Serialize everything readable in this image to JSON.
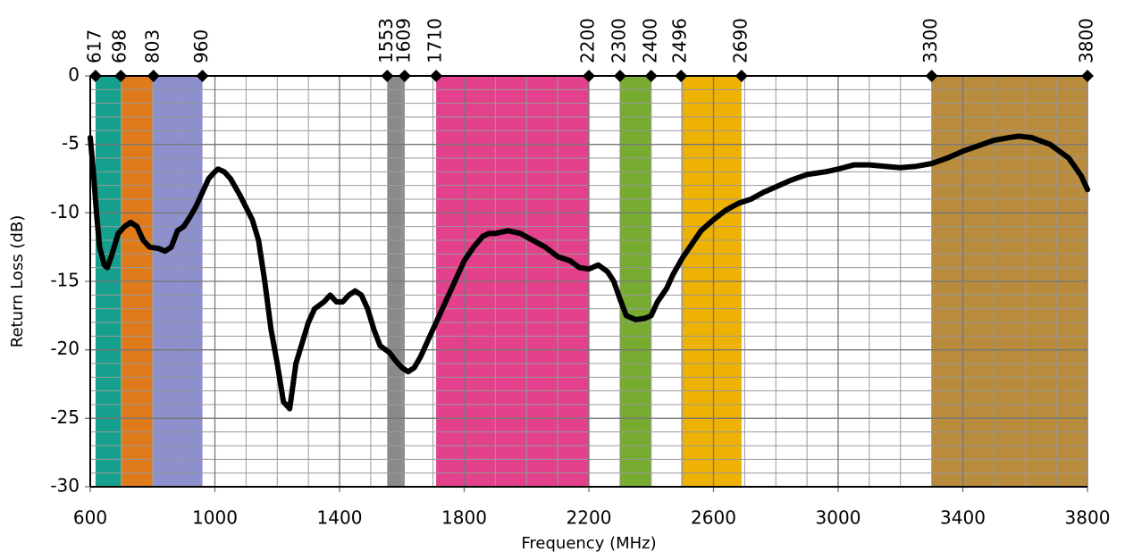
{
  "chart_data": {
    "type": "line",
    "xlabel": "Frequency (MHz)",
    "ylabel": "Return Loss (dB)",
    "xlim": [
      600,
      3800
    ],
    "xticks": [
      600,
      1000,
      1400,
      1800,
      2200,
      2600,
      3000,
      3400,
      3800
    ],
    "ylim": [
      -30,
      0
    ],
    "yticks": [
      0,
      -5,
      -10,
      -15,
      -20,
      -25,
      -30
    ],
    "grid": true,
    "xgrid_step": 100,
    "ygrid_step": 1,
    "markers": [
      617,
      698,
      803,
      960,
      1553,
      1609,
      1710,
      2200,
      2300,
      2400,
      2496,
      2690,
      3300,
      3800
    ],
    "bands": [
      {
        "from": 617,
        "to": 698,
        "color": "#14a08c"
      },
      {
        "from": 698,
        "to": 803,
        "color": "#e07b1c"
      },
      {
        "from": 803,
        "to": 960,
        "color": "#8d90cd"
      },
      {
        "from": 1553,
        "to": 1609,
        "color": "#8a8a8a"
      },
      {
        "from": 1710,
        "to": 2200,
        "color": "#e3418b"
      },
      {
        "from": 2300,
        "to": 2400,
        "color": "#77ac31"
      },
      {
        "from": 2496,
        "to": 2690,
        "color": "#eeb204"
      },
      {
        "from": 3300,
        "to": 3800,
        "color": "#b98b3c"
      }
    ],
    "series": [
      {
        "name": "Return Loss",
        "color": "#000000",
        "x": [
          600,
          610,
          620,
          630,
          645,
          655,
          670,
          690,
          710,
          730,
          750,
          770,
          790,
          820,
          840,
          860,
          880,
          900,
          920,
          940,
          960,
          980,
          1000,
          1010,
          1030,
          1050,
          1080,
          1100,
          1120,
          1140,
          1160,
          1180,
          1200,
          1220,
          1240,
          1260,
          1280,
          1300,
          1320,
          1350,
          1370,
          1390,
          1410,
          1430,
          1450,
          1470,
          1490,
          1510,
          1530,
          1560,
          1580,
          1600,
          1620,
          1640,
          1660,
          1680,
          1700,
          1720,
          1750,
          1780,
          1800,
          1830,
          1860,
          1880,
          1900,
          1940,
          1980,
          2020,
          2060,
          2100,
          2140,
          2170,
          2200,
          2230,
          2260,
          2280,
          2300,
          2320,
          2350,
          2380,
          2400,
          2420,
          2450,
          2470,
          2500,
          2530,
          2560,
          2600,
          2640,
          2680,
          2720,
          2760,
          2800,
          2850,
          2900,
          2960,
          3000,
          3050,
          3100,
          3150,
          3200,
          3250,
          3300,
          3350,
          3400,
          3450,
          3500,
          3550,
          3580,
          3620,
          3680,
          3740,
          3780,
          3800
        ],
        "values": [
          -4.5,
          -7,
          -10,
          -12.5,
          -13.8,
          -14,
          -13,
          -11.5,
          -11,
          -10.7,
          -11,
          -12,
          -12.5,
          -12.6,
          -12.8,
          -12.5,
          -11.3,
          -11,
          -10.3,
          -9.5,
          -8.5,
          -7.5,
          -7,
          -6.8,
          -7,
          -7.5,
          -8.7,
          -9.6,
          -10.5,
          -12,
          -15,
          -18.5,
          -21,
          -23.8,
          -24.3,
          -21,
          -19.5,
          -18,
          -17,
          -16.5,
          -16,
          -16.5,
          -16.5,
          -16,
          -15.7,
          -16,
          -17,
          -18.5,
          -19.7,
          -20.2,
          -20.8,
          -21.3,
          -21.6,
          -21.3,
          -20.5,
          -19.5,
          -18.5,
          -17.5,
          -16,
          -14.5,
          -13.5,
          -12.5,
          -11.7,
          -11.5,
          -11.5,
          -11.3,
          -11.5,
          -12,
          -12.5,
          -13.2,
          -13.5,
          -14,
          -14.1,
          -13.8,
          -14.3,
          -15,
          -16.3,
          -17.5,
          -17.8,
          -17.7,
          -17.5,
          -16.5,
          -15.5,
          -14.5,
          -13.3,
          -12.3,
          -11.3,
          -10.5,
          -9.8,
          -9.3,
          -9,
          -8.5,
          -8.1,
          -7.6,
          -7.2,
          -7,
          -6.8,
          -6.5,
          -6.5,
          -6.6,
          -6.7,
          -6.6,
          -6.4,
          -6,
          -5.5,
          -5.1,
          -4.7,
          -4.5,
          -4.4,
          -4.5,
          -5,
          -6,
          -7.3,
          -8.3
        ]
      }
    ]
  }
}
